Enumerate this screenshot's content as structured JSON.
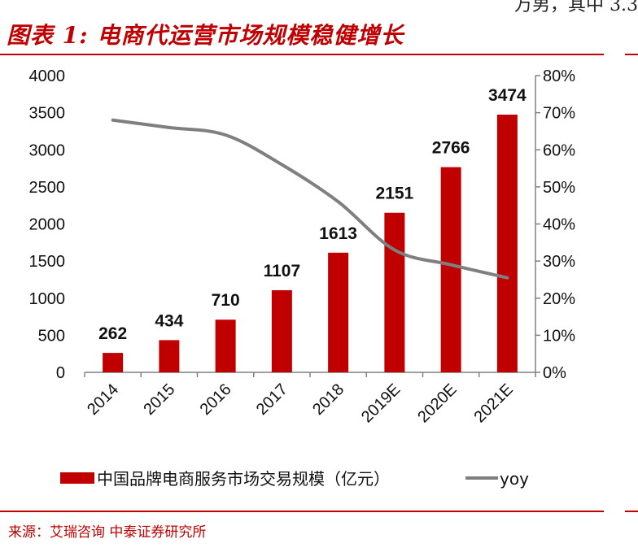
{
  "header": {
    "title": "图表 1:  电商代运营市场规模稳健增长",
    "corner_text": "万男，其中 3.3"
  },
  "footer": {
    "source": "来源：艾瑞咨询  中泰证券研究所"
  },
  "colors": {
    "bar": "#c00000",
    "line": "#7f7f7f",
    "accent": "#c00000"
  },
  "chart_data": {
    "type": "bar",
    "title": "",
    "xlabel": "",
    "ylabel": "",
    "categories": [
      "2014",
      "2015",
      "2016",
      "2017",
      "2018",
      "2019E",
      "2020E",
      "2021E"
    ],
    "series": [
      {
        "name": "中国品牌电商服务市场交易规模（亿元）",
        "type": "bar",
        "axis": "left",
        "values": [
          262,
          434,
          710,
          1107,
          1613,
          2151,
          2766,
          3474
        ]
      },
      {
        "name": "yoy",
        "type": "line",
        "axis": "right",
        "values": [
          0.68,
          0.66,
          0.64,
          0.56,
          0.46,
          0.33,
          0.29,
          0.255
        ]
      }
    ],
    "ylim": [
      0,
      4000
    ],
    "y_ticks": [
      "0",
      "500",
      "1000",
      "1500",
      "2000",
      "2500",
      "3000",
      "3500",
      "4000"
    ],
    "y2lim": [
      0,
      0.8
    ],
    "y2_ticks": [
      "0%",
      "10%",
      "20%",
      "30%",
      "40%",
      "50%",
      "60%",
      "70%",
      "80%"
    ],
    "data_labels": [
      "262",
      "434",
      "710",
      "1107",
      "1613",
      "2151",
      "2766",
      "3474"
    ],
    "grid": false,
    "legend_position": "bottom"
  }
}
